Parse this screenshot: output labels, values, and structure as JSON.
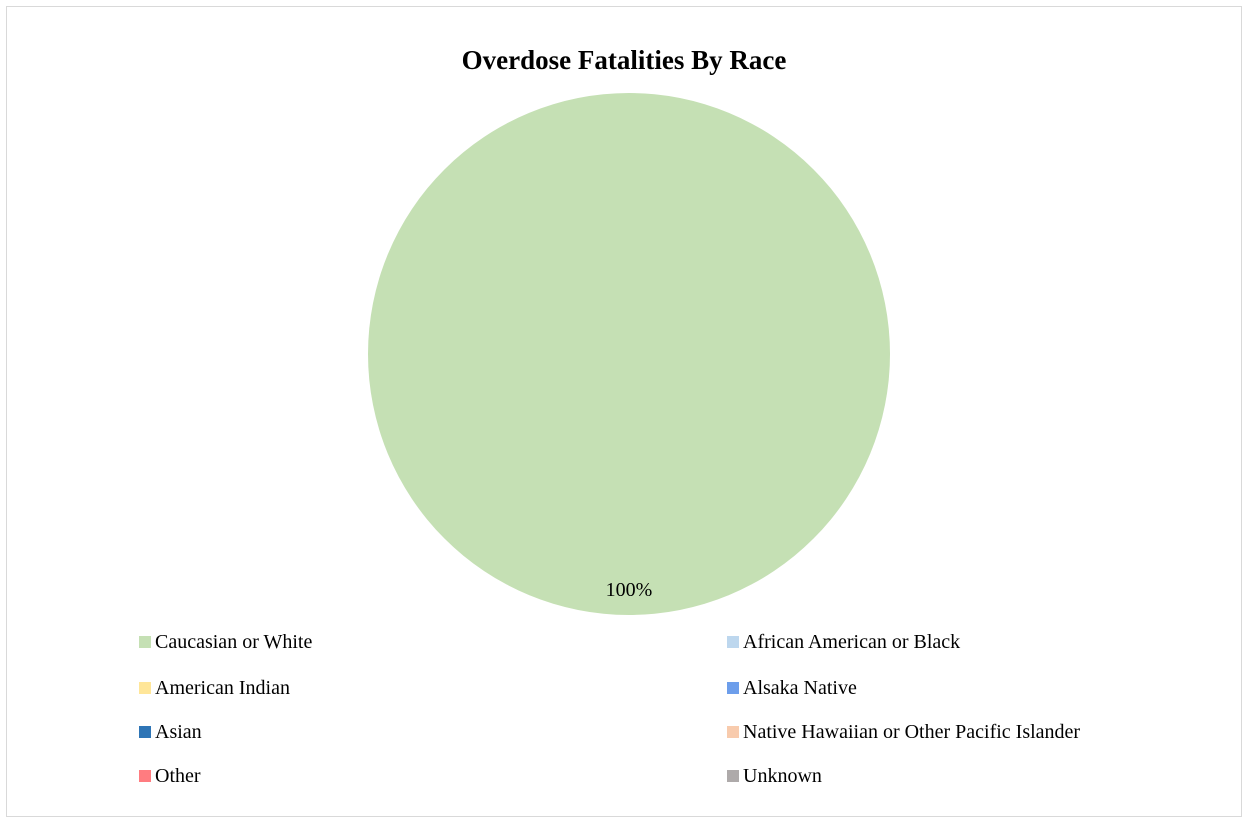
{
  "chart_data": {
    "type": "pie",
    "title": "Overdose Fatalities By Race",
    "categories": [
      "Caucasian or White",
      "African American or Black",
      "American Indian",
      "Alsaka Native",
      "Asian",
      "Native Hawaiian or Other Pacific Islander",
      "Other",
      "Unknown"
    ],
    "values": [
      100,
      0,
      0,
      0,
      0,
      0,
      0,
      0
    ],
    "data_labels": [
      "100%"
    ],
    "colors": [
      "#c5e0b4",
      "#bdd7ee",
      "#ffe699",
      "#6d9eeb",
      "#2e75b6",
      "#f8cbad",
      "#ff7c80",
      "#aeaaaa"
    ],
    "legend_position": "bottom"
  }
}
